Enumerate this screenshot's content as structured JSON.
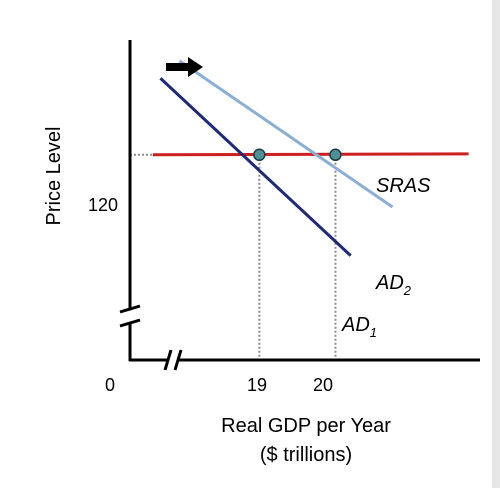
{
  "chart_data": {
    "type": "line",
    "xlabel": "Real GDP per Year",
    "xlabel_sub": "($ trillions)",
    "ylabel": "Price Level",
    "origin_label": "0",
    "x_ticks": [
      19,
      20
    ],
    "y_ticks": [
      120
    ],
    "xlim": [
      17.3,
      21.9
    ],
    "ylim": [
      108.2,
      126.6
    ],
    "axis_breaks": {
      "x": true,
      "y": true
    },
    "series": [
      {
        "name": "SRAS",
        "color": "#cc1f1f",
        "points": [
          [
            17.6,
            120.0
          ],
          [
            21.75,
            120.05
          ]
        ]
      },
      {
        "name": "AD",
        "sub": "1",
        "color": "#1e2a78",
        "points": [
          [
            17.7,
            124.4
          ],
          [
            20.2,
            114.2
          ]
        ]
      },
      {
        "name": "AD",
        "sub": "2",
        "color": "#8aaed4",
        "points": [
          [
            17.95,
            125.4
          ],
          [
            20.75,
            117.0
          ]
        ]
      }
    ],
    "equilibria": [
      {
        "x": 19,
        "y": 120
      },
      {
        "x": 20,
        "y": 120
      }
    ],
    "shift_arrow": {
      "direction": "right",
      "color": "#000000"
    },
    "grid": false,
    "legend": "none"
  }
}
